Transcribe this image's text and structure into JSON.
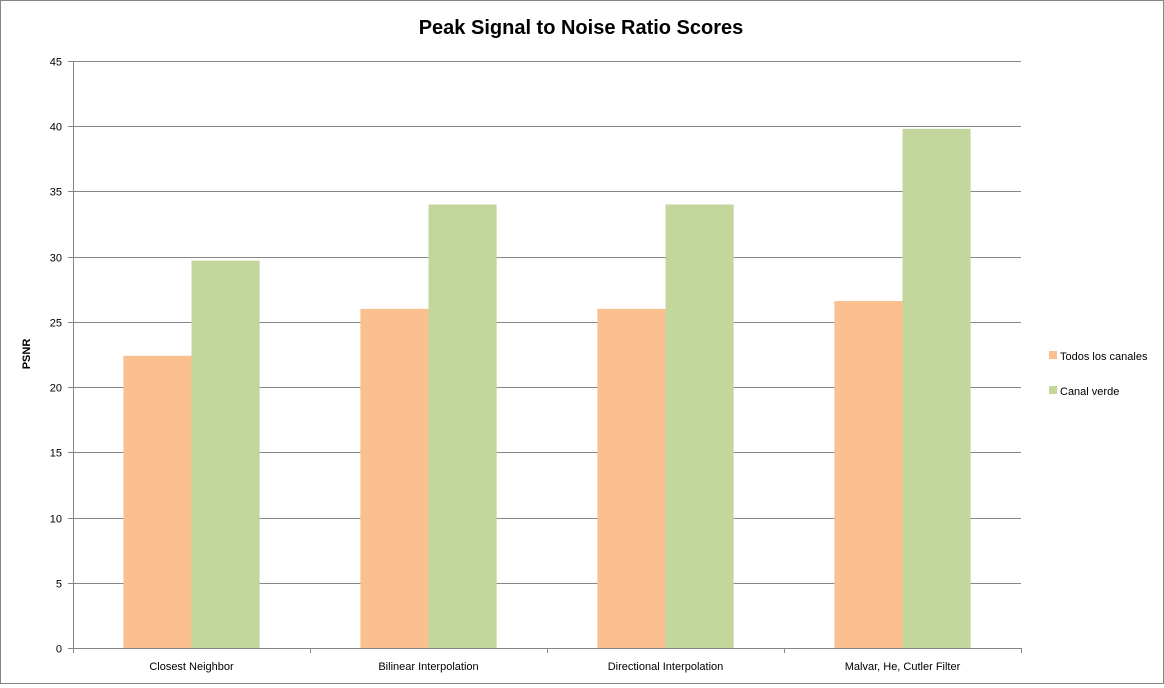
{
  "chart_data": {
    "type": "bar",
    "title": "Peak Signal to Noise Ratio Scores",
    "xlabel": "",
    "ylabel": "PSNR",
    "categories": [
      "Closest Neighbor",
      "Bilinear Interpolation",
      "Directional Interpolation",
      "Malvar, He, Cutler Filter"
    ],
    "series": [
      {
        "name": "Todos los canales",
        "color": "#FAC090",
        "values": [
          22.4,
          26.0,
          26.0,
          26.6
        ]
      },
      {
        "name": "Canal verde",
        "color": "#C3D69B",
        "values": [
          29.7,
          34.0,
          34.0,
          39.8
        ]
      }
    ],
    "ylim": [
      0,
      45
    ],
    "yticks": [
      0,
      5,
      10,
      15,
      20,
      25,
      30,
      35,
      40,
      45
    ],
    "grid": true,
    "legend_position": "right"
  }
}
